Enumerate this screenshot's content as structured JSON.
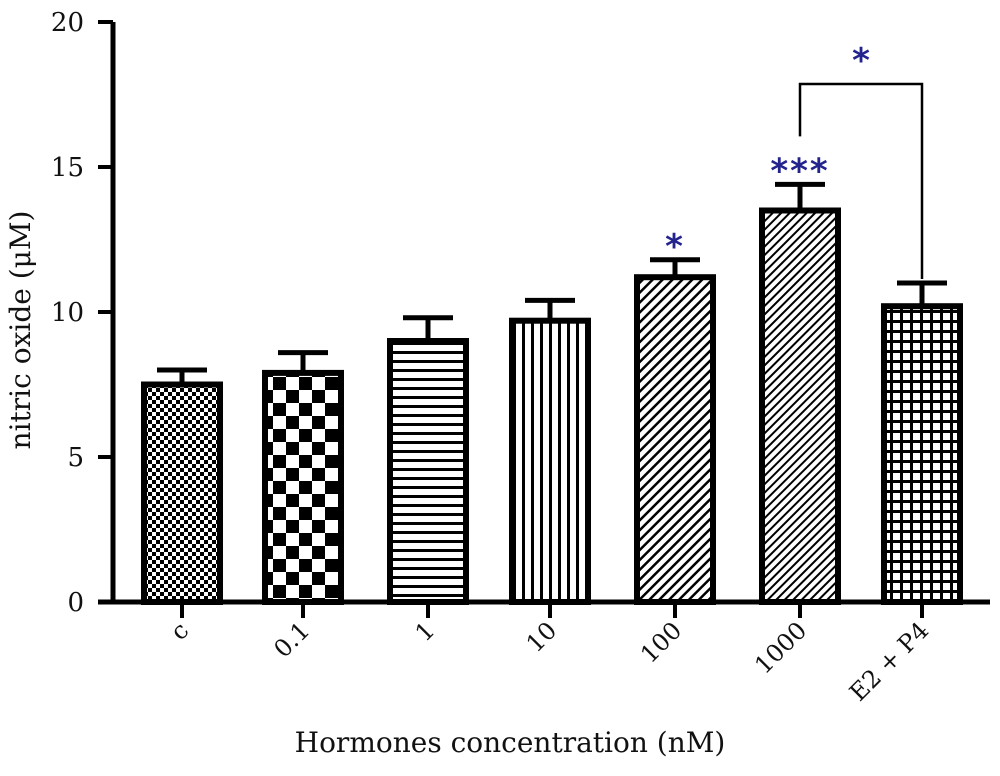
{
  "chart_data": {
    "type": "bar",
    "title": "",
    "xlabel": "Hormones concentration (nM)",
    "ylabel": "nitric oxide (μM)",
    "ylim": [
      0,
      20
    ],
    "yticks": [
      0,
      5,
      10,
      15,
      20
    ],
    "categories": [
      "c",
      "0.1",
      "1",
      "10",
      "100",
      "1000",
      "E2 + P4"
    ],
    "values": [
      7.5,
      7.9,
      9.0,
      9.7,
      11.2,
      13.5,
      10.2
    ],
    "error": [
      0.5,
      0.7,
      0.8,
      0.7,
      0.6,
      0.9,
      0.8
    ],
    "patterns": [
      "fine-checker",
      "checker",
      "horizontal-lines",
      "vertical-lines",
      "diagonal-lines",
      "diagonal-lines-dense",
      "grid"
    ],
    "annotations": [
      {
        "category": "100",
        "text": "*"
      },
      {
        "category": "1000",
        "text": "***"
      },
      {
        "bracket": [
          "1000",
          "E2 + P4"
        ],
        "text": "*"
      }
    ],
    "grid": false,
    "legend": "none"
  },
  "colors": {
    "bars": "#000000",
    "stars": "#23238e"
  }
}
